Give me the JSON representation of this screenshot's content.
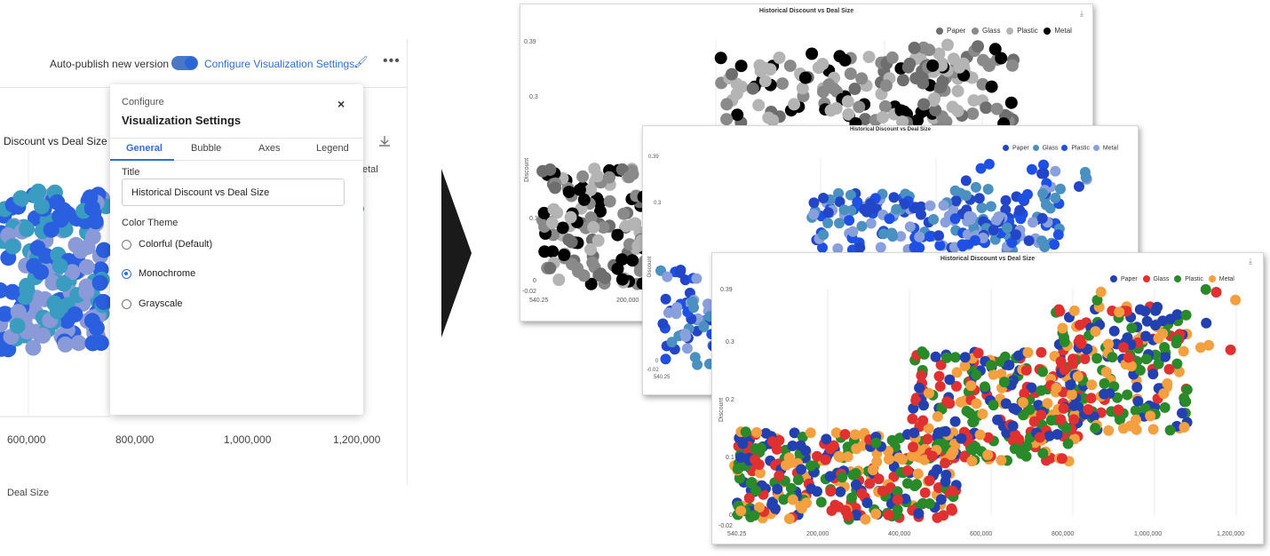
{
  "editor": {
    "auto_publish_label": "Auto-publish new version",
    "auto_publish_on": true,
    "configure_link": "Configure Visualization Settings",
    "more_label": "•••",
    "chart_title_fragment": "Discount vs Deal Size",
    "legend_fragment": "etal",
    "x_tick_labels": [
      "600,000",
      "800,000",
      "1,000,000",
      "1,200,000"
    ],
    "x_axis_label": "Deal Size",
    "bubble_colors": [
      "#2a5fe0",
      "#3a9cc0",
      "#8a9ad8"
    ]
  },
  "dialog": {
    "header": "Configure",
    "title": "Visualization Settings",
    "close_label": "×",
    "tabs": [
      {
        "label": "General",
        "active": true
      },
      {
        "label": "Bubble",
        "active": false
      },
      {
        "label": "Axes",
        "active": false
      },
      {
        "label": "Legend",
        "active": false
      }
    ],
    "title_field_label": "Title",
    "title_value": "Historical Discount vs Deal Size",
    "color_theme_label": "Color Theme",
    "color_themes": [
      {
        "label": "Colorful (Default)",
        "selected": false
      },
      {
        "label": "Monochrome",
        "selected": true
      },
      {
        "label": "Grayscale",
        "selected": false
      }
    ]
  },
  "charts": {
    "title": "Historical Discount vs Deal Size",
    "y_axis_label": "Discount",
    "y_ticks": [
      "0.39",
      "0.3",
      "0.2",
      "0.1",
      "0",
      "-0.02"
    ],
    "x_ticks": [
      "540.25",
      "200,000",
      "400,000",
      "600,000",
      "800,000",
      "1,000,000",
      "1,200,000"
    ],
    "legend_labels": [
      "Paper",
      "Glass",
      "Plastic",
      "Metal"
    ],
    "grayscale_colors": [
      "#6e6e6e",
      "#8a8a8a",
      "#b4b4b4",
      "#000000"
    ],
    "monochrome_colors": [
      "#2346c8",
      "#4a90c0",
      "#1e50e6",
      "#8aa0dc"
    ],
    "colorful_colors": [
      "#2340b0",
      "#e03030",
      "#2a8a2a",
      "#f5a040"
    ]
  }
}
